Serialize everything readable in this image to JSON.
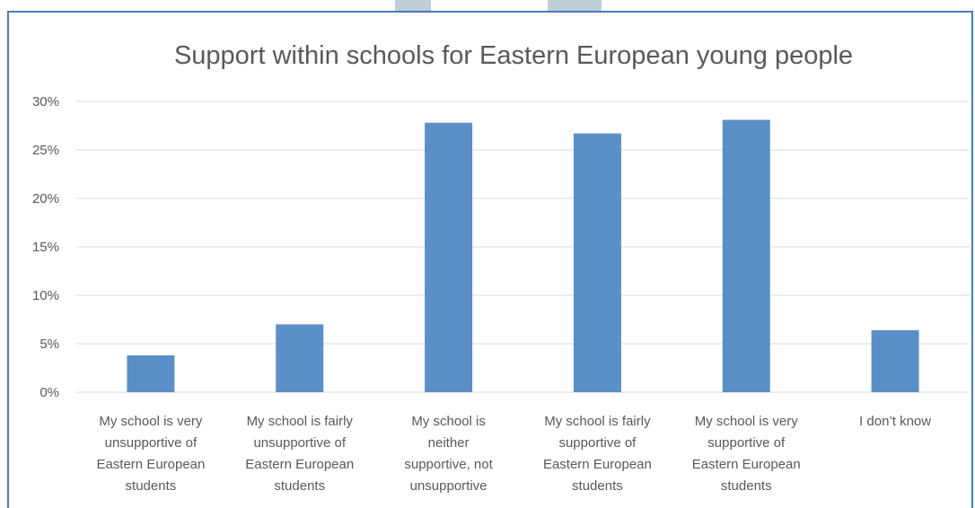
{
  "chart_data": {
    "type": "bar",
    "title": "Support within schools for Eastern European young people",
    "categories": [
      [
        "My school is very",
        "unsupportive of",
        "Eastern European",
        "students"
      ],
      [
        "My school is fairly",
        "unsupportive of",
        "Eastern European",
        "students"
      ],
      [
        "My school is",
        "neither",
        "supportive, not",
        "unsupportive"
      ],
      [
        "My school is fairly",
        "supportive of",
        "Eastern European",
        "students"
      ],
      [
        "My school is very",
        "supportive of",
        "Eastern European",
        "students"
      ],
      [
        "I don’t know"
      ]
    ],
    "values": [
      3.8,
      7.0,
      27.8,
      26.7,
      28.1,
      6.4
    ],
    "ylim": [
      0,
      30
    ],
    "yticks": [
      "0%",
      "5%",
      "10%",
      "15%",
      "20%",
      "25%",
      "30%"
    ],
    "ytick_values": [
      0,
      5,
      10,
      15,
      20,
      25,
      30
    ],
    "grid": true,
    "colors": {
      "bar": "#5b8fc7",
      "grid": "#d9d9d9",
      "text": "#595959",
      "border": "#4a7ab8"
    }
  }
}
